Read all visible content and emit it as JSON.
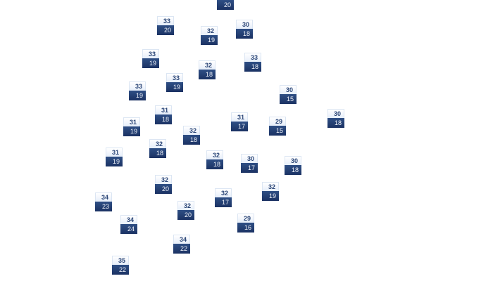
{
  "colors": {
    "high_bg": "#eef3fb",
    "high_text": "#2b4677",
    "low_bg": "#24406f",
    "low_text": "#f2f5fb"
  },
  "markers": [
    {
      "high": "",
      "low": "20"
    },
    {
      "high": "33",
      "low": "20"
    },
    {
      "high": "32",
      "low": "19"
    },
    {
      "high": "30",
      "low": "18"
    },
    {
      "high": "33",
      "low": "19"
    },
    {
      "high": "32",
      "low": "18"
    },
    {
      "high": "33",
      "low": "18"
    },
    {
      "high": "33",
      "low": "19"
    },
    {
      "high": "33",
      "low": "19"
    },
    {
      "high": "30",
      "low": "15"
    },
    {
      "high": "31",
      "low": "18"
    },
    {
      "high": "31",
      "low": "19"
    },
    {
      "high": "32",
      "low": "18"
    },
    {
      "high": "31",
      "low": "17"
    },
    {
      "high": "29",
      "low": "15"
    },
    {
      "high": "30",
      "low": "18"
    },
    {
      "high": "32",
      "low": "18"
    },
    {
      "high": "31",
      "low": "19"
    },
    {
      "high": "32",
      "low": "18"
    },
    {
      "high": "30",
      "low": "17"
    },
    {
      "high": "30",
      "low": "18"
    },
    {
      "high": "32",
      "low": "20"
    },
    {
      "high": "34",
      "low": "23"
    },
    {
      "high": "32",
      "low": "20"
    },
    {
      "high": "32",
      "low": "17"
    },
    {
      "high": "32",
      "low": "19"
    },
    {
      "high": "29",
      "low": "16"
    },
    {
      "high": "34",
      "low": "24"
    },
    {
      "high": "34",
      "low": "22"
    },
    {
      "high": "35",
      "low": "22"
    }
  ]
}
